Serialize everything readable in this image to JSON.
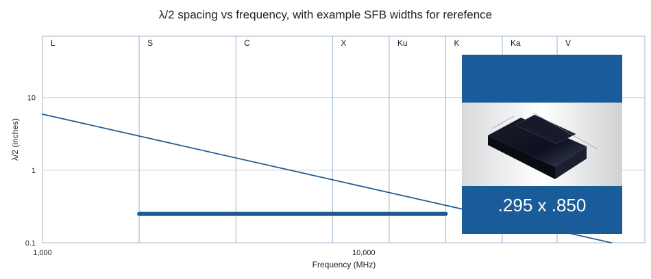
{
  "chart_data": {
    "type": "line",
    "title": "λ/2 spacing vs frequency, with example SFB widths for rerefence",
    "xlabel": "Frequency (MHz)",
    "ylabel": "λ/2 (inches)",
    "xscale": "log",
    "yscale": "log",
    "xlim": [
      1000,
      75000
    ],
    "ylim": [
      0.1,
      70
    ],
    "x_ticks": [
      {
        "value": 1000,
        "label": "1,000"
      },
      {
        "value": 10000,
        "label": "10,000"
      }
    ],
    "y_ticks": [
      {
        "value": 0.1,
        "label": "0.1"
      },
      {
        "value": 1,
        "label": "1"
      },
      {
        "value": 10,
        "label": "10"
      }
    ],
    "grid": true,
    "bands": [
      {
        "label": "L",
        "start": 1000
      },
      {
        "label": "S",
        "start": 2000
      },
      {
        "label": "C",
        "start": 4000
      },
      {
        "label": "X",
        "start": 8000
      },
      {
        "label": "Ku",
        "start": 12000
      },
      {
        "label": "K",
        "start": 18000
      },
      {
        "label": "Ka",
        "start": 27000
      },
      {
        "label": "V",
        "start": 40000
      }
    ],
    "series": [
      {
        "x": [
          1000,
          59000
        ],
        "y": [
          5.9,
          0.1
        ],
        "color": "#1f5a91"
      },
      {
        "x": [
          2000,
          18000
        ],
        "y": [
          0.25,
          0.25
        ],
        "color": "#1f5a91"
      }
    ],
    "annotation": {
      "text": ".295 x .850",
      "color": "#1a5c99"
    }
  }
}
